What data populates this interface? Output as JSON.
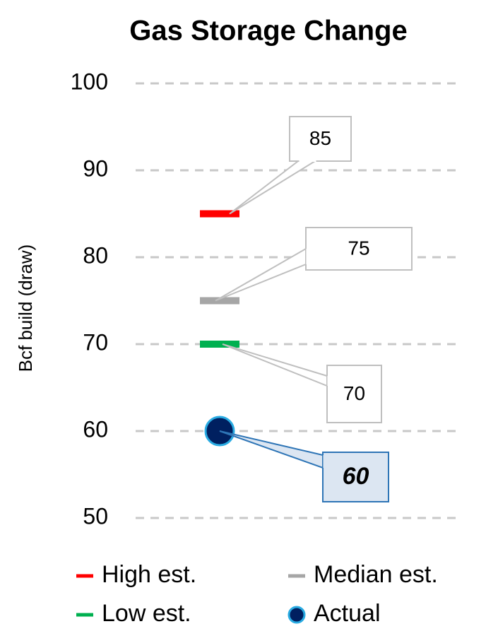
{
  "chart_data": {
    "type": "dot",
    "title": "Gas Storage Change",
    "y_label": "Bcf build (draw)",
    "categories": [
      null
    ],
    "series": [
      {
        "name": "High est.",
        "color": "#ff0000",
        "marker": "dash",
        "values": [
          85
        ]
      },
      {
        "name": "Median est.",
        "color": "#a6a6a6",
        "marker": "dash",
        "values": [
          75
        ]
      },
      {
        "name": "Low est.",
        "color": "#00b050",
        "marker": "dash",
        "values": [
          70
        ]
      },
      {
        "name": "Actual",
        "color": "#002060",
        "edgecolor": "#29abe2",
        "marker": "circle",
        "values": [
          60
        ]
      }
    ],
    "ylim": [
      50,
      100
    ],
    "yticks": [
      50,
      60,
      70,
      80,
      90,
      100
    ],
    "grid": true,
    "legend": "bottom"
  }
}
